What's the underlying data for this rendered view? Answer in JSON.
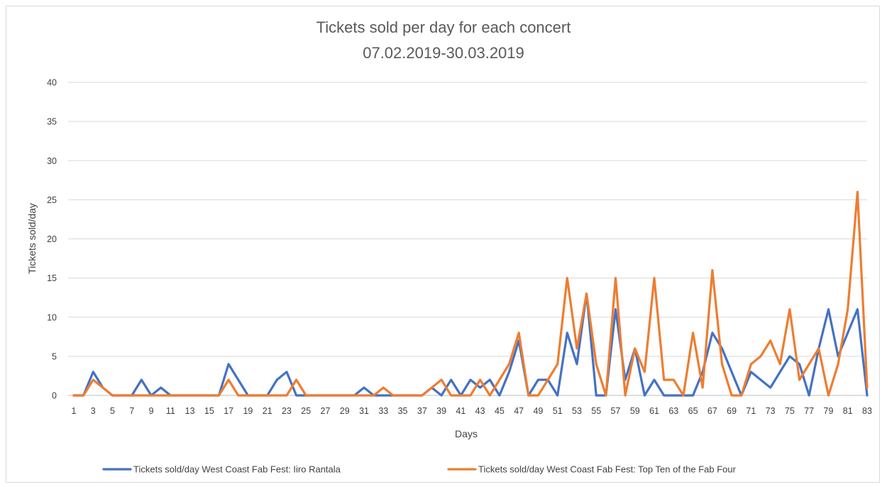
{
  "chart_data": {
    "type": "line",
    "title": "Tickets sold per day for each concert",
    "subtitle": "07.02.2019-30.03.2019",
    "xlabel": "Days",
    "ylabel": "Tickets sold/day",
    "ylim": [
      0,
      40
    ],
    "yticks": [
      0,
      5,
      10,
      15,
      20,
      25,
      30,
      35,
      40
    ],
    "x": [
      1,
      2,
      3,
      4,
      5,
      6,
      7,
      8,
      9,
      10,
      11,
      12,
      13,
      14,
      15,
      16,
      17,
      18,
      19,
      20,
      21,
      22,
      23,
      24,
      25,
      26,
      27,
      28,
      29,
      30,
      31,
      32,
      33,
      34,
      35,
      36,
      37,
      38,
      39,
      40,
      41,
      42,
      43,
      44,
      45,
      46,
      47,
      48,
      49,
      50,
      51,
      52,
      53,
      54,
      55,
      56,
      57,
      58,
      59,
      60,
      61,
      62,
      63,
      64,
      65,
      66,
      67,
      68,
      69,
      70,
      71,
      72,
      73,
      74,
      75,
      76,
      77,
      78,
      79,
      80,
      81,
      82,
      83
    ],
    "xtick_labels": [
      1,
      3,
      5,
      7,
      9,
      11,
      13,
      15,
      17,
      19,
      21,
      23,
      25,
      27,
      29,
      31,
      33,
      35,
      37,
      39,
      41,
      43,
      45,
      47,
      49,
      51,
      53,
      55,
      57,
      59,
      61,
      63,
      65,
      67,
      69,
      71,
      73,
      75,
      77,
      79,
      81,
      83
    ],
    "grid": "horizontal",
    "legend_position": "bottom",
    "series": [
      {
        "name": "Tickets sold/day West Coast Fab Fest: Iiro Rantala",
        "color": "#4472c4",
        "values": [
          0,
          0,
          3,
          1,
          0,
          0,
          0,
          2,
          0,
          1,
          0,
          0,
          0,
          0,
          0,
          0,
          4,
          2,
          0,
          0,
          0,
          2,
          3,
          0,
          0,
          0,
          0,
          0,
          0,
          0,
          1,
          0,
          0,
          0,
          0,
          0,
          0,
          1,
          0,
          2,
          0,
          2,
          1,
          2,
          0,
          3,
          7,
          0,
          2,
          2,
          0,
          8,
          4,
          13,
          0,
          0,
          11,
          2,
          6,
          0,
          2,
          0,
          0,
          0,
          0,
          3,
          8,
          6,
          3,
          0,
          3,
          2,
          1,
          3,
          5,
          4,
          0,
          6,
          11,
          5,
          8,
          11,
          0
        ]
      },
      {
        "name": "Tickets sold/day West Coast Fab Fest: Top Ten of the Fab Four",
        "color": "#ed7d31",
        "values": [
          0,
          0,
          2,
          1,
          0,
          0,
          0,
          0,
          0,
          0,
          0,
          0,
          0,
          0,
          0,
          0,
          2,
          0,
          0,
          0,
          0,
          0,
          0,
          2,
          0,
          0,
          0,
          0,
          0,
          0,
          0,
          0,
          1,
          0,
          0,
          0,
          0,
          1,
          2,
          0,
          0,
          0,
          2,
          0,
          2,
          4,
          8,
          0,
          0,
          2,
          4,
          15,
          6,
          13,
          4,
          0,
          15,
          0,
          6,
          3,
          15,
          2,
          2,
          0,
          8,
          1,
          16,
          4,
          0,
          0,
          4,
          5,
          7,
          4,
          11,
          2,
          4,
          6,
          0,
          4,
          11,
          26,
          1
        ]
      }
    ]
  }
}
